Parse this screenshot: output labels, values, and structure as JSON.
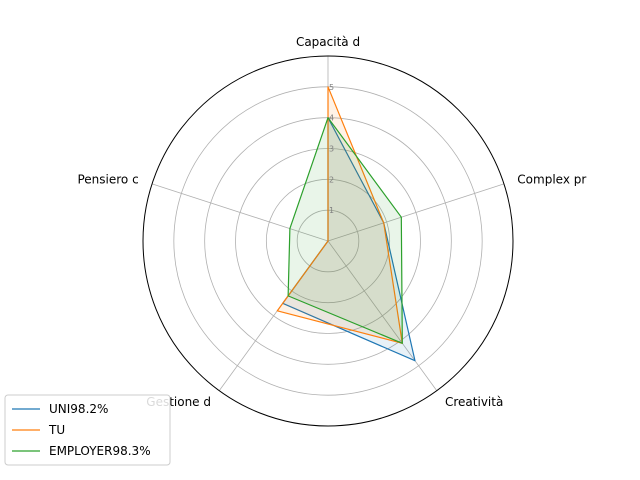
{
  "chart_data": {
    "type": "radar",
    "axes": [
      "Capacità d",
      "Complex pr",
      "Creatività",
      "Gestione d",
      "Pensiero c"
    ],
    "rticks": [
      "1",
      "2",
      "3",
      "4",
      "5"
    ],
    "rlim": [
      0,
      6
    ],
    "grid": true,
    "legend_position": "bottom-left",
    "series": [
      {
        "name": "UNI98.2%",
        "color": "#1f77b4",
        "values": [
          4.0,
          1.9,
          4.8,
          2.5,
          0.0
        ]
      },
      {
        "name": "TU",
        "color": "#ff7f0e",
        "values": [
          5.0,
          1.9,
          4.1,
          2.8,
          0.0
        ]
      },
      {
        "name": "EMPLOYER98.3%",
        "color": "#2ca02c",
        "values": [
          4.0,
          2.5,
          4.1,
          2.2,
          1.3
        ]
      }
    ]
  }
}
